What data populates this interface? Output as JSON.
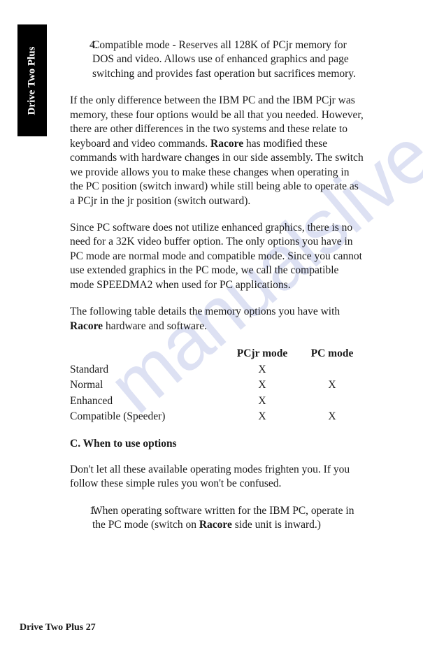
{
  "sideTab": "Drive Two Plus",
  "watermark": "manualslive.com",
  "item4": {
    "num": "4.",
    "text_a": "Compatible mode - Reserves all 128K of PCjr memory for DOS and video. Allows use of enhanced graphics and page switching and provides fast operation but sacrifices memory."
  },
  "para1_a": "If the only difference between the IBM PC and the IBM PCjr was memory, these four options would be all that you needed. However, there are other differences in the two systems and these relate to keyboard and video commands. ",
  "para1_bold": "Racore",
  "para1_b": " has modified these commands with hardware changes in our side assembly. The switch we provide allows you to make these changes when operating in the PC position (switch inward) while still being able to operate as a PCjr in the jr position (switch outward).",
  "para2": "Since PC software does not utilize enhanced graphics, there is no need for a 32K video buffer option. The only options you have in PC mode are normal mode and compatible mode. Since you cannot use extended graphics in the PC mode, we call the compatible mode SPEEDMA2 when used for PC applications.",
  "para3_a": "The following table details the memory options you have with ",
  "para3_bold": "Racore",
  "para3_b": " hardware and software.",
  "table": {
    "headers": {
      "col1": "",
      "col2": "PCjr mode",
      "col3": "PC mode"
    },
    "rows": [
      {
        "mode": "Standard",
        "pcjr": "X",
        "pc": ""
      },
      {
        "mode": "Normal",
        "pcjr": "X",
        "pc": "X"
      },
      {
        "mode": "Enhanced",
        "pcjr": "X",
        "pc": ""
      },
      {
        "mode": "Compatible (Speeder)",
        "pcjr": "X",
        "pc": "X"
      }
    ]
  },
  "sectionC": "C. When to use options",
  "para4": "Don't let all these available operating modes frighten you. If you follow these simple rules you won't be confused.",
  "item1": {
    "num": "1.",
    "text_a": "When operating software written for the IBM PC, operate in the PC mode (switch on ",
    "bold": "Racore",
    "text_b": " side unit is inward.)"
  },
  "footer": "Drive Two Plus 27"
}
